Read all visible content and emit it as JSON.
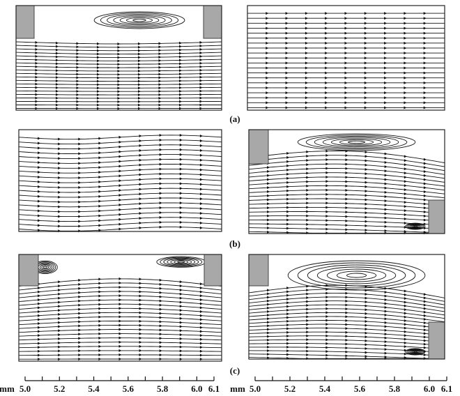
{
  "panel_labels": [
    "(a)",
    "(b)",
    "(c)"
  ],
  "scales": [
    {
      "unit": "mm",
      "labels": [
        "5.0",
        "5.2",
        "5.4",
        "5.6",
        "5.8",
        "6.0",
        "6.1"
      ]
    },
    {
      "unit": "mm",
      "labels": [
        "5.0",
        "5.2",
        "5.4",
        "5.6",
        "5.8",
        "6.0",
        "6.1"
      ]
    }
  ]
}
